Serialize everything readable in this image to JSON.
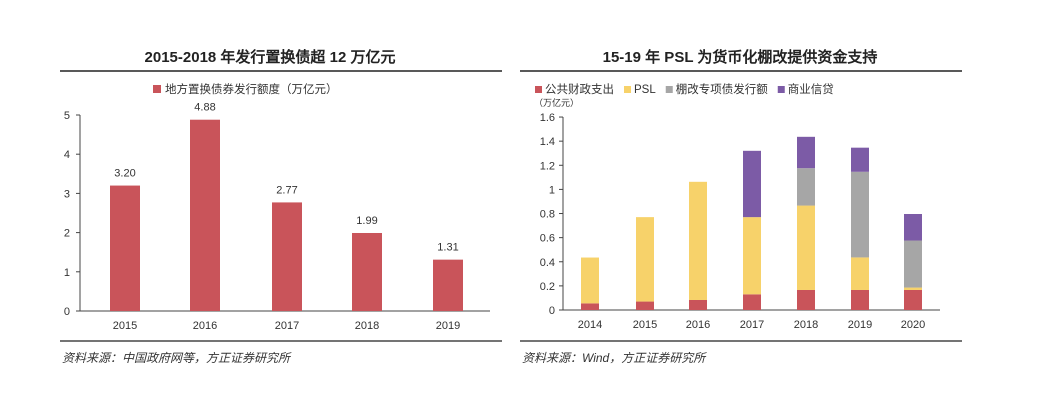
{
  "chart_data": [
    {
      "type": "bar",
      "title": "2015-2018 年发行置换债超 12 万亿元",
      "legend": [
        "地方置换债券发行额度（万亿元）"
      ],
      "categories": [
        "2015",
        "2016",
        "2017",
        "2018",
        "2019"
      ],
      "values": [
        3.2,
        4.88,
        2.77,
        1.99,
        1.31
      ],
      "value_labels": [
        "3.20",
        "4.88",
        "2.77",
        "1.99",
        "1.31"
      ],
      "yticks": [
        "0",
        "1",
        "2",
        "3",
        "4",
        "5"
      ],
      "ylim": [
        0,
        5
      ],
      "color": "#c9545a",
      "source": "资料来源：中国政府网等，方正证券研究所"
    },
    {
      "type": "bar",
      "stacked": true,
      "title": "15-19 年 PSL 为货币化棚改提供资金支持",
      "ylabel": "（万亿元）",
      "categories": [
        "2014",
        "2015",
        "2016",
        "2017",
        "2018",
        "2019",
        "2020"
      ],
      "series": [
        {
          "name": "公共财政支出",
          "color": "#c9545a",
          "values": [
            0.055,
            0.07,
            0.083,
            0.13,
            0.166,
            0.166,
            0.166
          ]
        },
        {
          "name": "PSL",
          "color": "#f7d26a",
          "values": [
            0.38,
            0.7,
            0.98,
            0.64,
            0.7,
            0.27,
            0.02
          ]
        },
        {
          "name": "棚改专项债发行额",
          "color": "#a6a6a6",
          "values": [
            0,
            0,
            0,
            0,
            0.31,
            0.71,
            0.39
          ]
        },
        {
          "name": "商业信贷",
          "color": "#7c5ba6",
          "values": [
            0,
            0,
            0,
            0.55,
            0.26,
            0.2,
            0.22
          ]
        }
      ],
      "yticks": [
        "0",
        "0.2",
        "0.4",
        "0.6",
        "0.8",
        "1",
        "1.2",
        "1.4",
        "1.6"
      ],
      "ylim": [
        0,
        1.6
      ],
      "source": "资料来源：Wind，方正证券研究所"
    }
  ]
}
